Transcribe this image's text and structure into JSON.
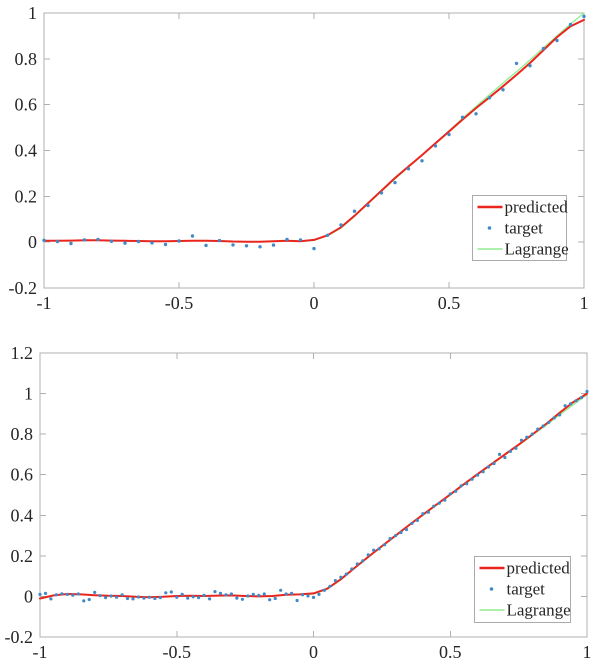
{
  "figure": {
    "background": "#ffffff",
    "axis_color": "#b0b0b0",
    "tick_label_color": "#262626",
    "legend_border_color": "#ababab",
    "legend_background": "#ffffff",
    "series_colors": {
      "predicted": "#e8261d",
      "target": "#4189c7",
      "lagrange": "#90ee90"
    }
  },
  "chart_data": [
    {
      "id": "top",
      "type": "line",
      "title": "",
      "xlabel": "",
      "ylabel": "",
      "xlim": [
        -1,
        1
      ],
      "ylim": [
        -0.2,
        1
      ],
      "grid": false,
      "box": true,
      "xticks": [
        -1,
        -0.5,
        0,
        0.5,
        1
      ],
      "xtick_labels": [
        "-1",
        "-0.5",
        "0",
        "0.5",
        "1"
      ],
      "yticks": [
        -0.2,
        0,
        0.2,
        0.4,
        0.6,
        0.8,
        1
      ],
      "ytick_labels": [
        "-0.2",
        "0",
        "0.2",
        "0.4",
        "0.6",
        "0.8",
        "1"
      ],
      "legend": {
        "position": "bottom-right",
        "entries": [
          {
            "label": "predicted",
            "type": "line",
            "color": "#e8261d",
            "width": 2.4
          },
          {
            "label": "target",
            "type": "dot",
            "color": "#4189c7"
          },
          {
            "label": "Lagrange",
            "type": "line",
            "color": "#90ee90",
            "width": 1.4
          }
        ]
      },
      "series": [
        {
          "name": "Lagrange",
          "kind": "line",
          "color": "#90ee90",
          "width": 1.3,
          "x": [
            -1,
            -0.95,
            -0.9,
            -0.85,
            -0.8,
            -0.75,
            -0.7,
            -0.65,
            -0.6,
            -0.55,
            -0.5,
            -0.45,
            -0.4,
            -0.35,
            -0.3,
            -0.25,
            -0.2,
            -0.15,
            -0.1,
            -0.05,
            0,
            0.05,
            0.1,
            0.15,
            0.2,
            0.25,
            0.3,
            0.35,
            0.4,
            0.45,
            0.5,
            0.55,
            0.6,
            0.65,
            0.7,
            0.75,
            0.8,
            0.85,
            0.9,
            0.95,
            1
          ],
          "y": [
            0.006,
            0.006,
            0.007,
            0.008,
            0.008,
            0.007,
            0.006,
            0.005,
            0.004,
            0.004,
            0.005,
            0.006,
            0.006,
            0.005,
            0.003,
            0.002,
            0.002,
            0.004,
            0.006,
            0.004,
            0.008,
            0.028,
            0.062,
            0.112,
            0.168,
            0.222,
            0.276,
            0.328,
            0.38,
            0.433,
            0.486,
            0.54,
            0.592,
            0.643,
            0.694,
            0.744,
            0.795,
            0.848,
            0.9,
            0.952,
            1.0
          ]
        },
        {
          "name": "predicted",
          "kind": "line",
          "color": "#e8261d",
          "width": 2,
          "x": [
            -1,
            -0.95,
            -0.9,
            -0.85,
            -0.8,
            -0.75,
            -0.7,
            -0.65,
            -0.6,
            -0.55,
            -0.5,
            -0.45,
            -0.4,
            -0.35,
            -0.3,
            -0.25,
            -0.2,
            -0.15,
            -0.1,
            -0.05,
            0,
            0.05,
            0.1,
            0.15,
            0.2,
            0.25,
            0.3,
            0.35,
            0.4,
            0.45,
            0.5,
            0.55,
            0.6,
            0.65,
            0.7,
            0.75,
            0.8,
            0.85,
            0.9,
            0.95,
            1
          ],
          "y": [
            0.006,
            0.006,
            0.007,
            0.008,
            0.008,
            0.007,
            0.006,
            0.005,
            0.004,
            0.004,
            0.005,
            0.006,
            0.006,
            0.005,
            0.003,
            0.002,
            0.002,
            0.004,
            0.006,
            0.004,
            0.01,
            0.03,
            0.065,
            0.115,
            0.17,
            0.225,
            0.28,
            0.33,
            0.38,
            0.432,
            0.483,
            0.535,
            0.585,
            0.632,
            0.68,
            0.73,
            0.782,
            0.838,
            0.895,
            0.942,
            0.97
          ]
        },
        {
          "name": "target",
          "kind": "scatter",
          "color": "#4189c7",
          "r": 1.7,
          "x": [
            -1,
            -0.95,
            -0.9,
            -0.85,
            -0.8,
            -0.75,
            -0.7,
            -0.65,
            -0.6,
            -0.55,
            -0.5,
            -0.45,
            -0.4,
            -0.35,
            -0.3,
            -0.25,
            -0.2,
            -0.15,
            -0.1,
            -0.05,
            0,
            0.05,
            0.1,
            0.15,
            0.2,
            0.25,
            0.3,
            0.35,
            0.4,
            0.45,
            0.5,
            0.55,
            0.6,
            0.65,
            0.7,
            0.75,
            0.8,
            0.85,
            0.9,
            0.95,
            1
          ],
          "y": [
            0.008,
            0.003,
            -0.006,
            0.01,
            0.012,
            0.004,
            -0.004,
            0.003,
            -0.003,
            -0.01,
            0.005,
            0.027,
            -0.014,
            0.007,
            -0.012,
            -0.016,
            -0.02,
            -0.013,
            0.012,
            0.01,
            -0.028,
            0.03,
            0.075,
            0.135,
            0.16,
            0.215,
            0.26,
            0.32,
            0.355,
            0.42,
            0.47,
            0.545,
            0.56,
            0.63,
            0.665,
            0.78,
            0.77,
            0.845,
            0.88,
            0.95,
            0.985
          ]
        }
      ]
    },
    {
      "id": "bottom",
      "type": "line",
      "title": "",
      "xlabel": "",
      "ylabel": "",
      "xlim": [
        -1,
        1
      ],
      "ylim": [
        -0.2,
        1.2
      ],
      "grid": false,
      "box": true,
      "xticks": [
        -1,
        -0.5,
        0,
        0.5,
        1
      ],
      "xtick_labels": [
        "-1",
        "-0.5",
        "0",
        "0.5",
        "1"
      ],
      "yticks": [
        -0.2,
        0,
        0.2,
        0.4,
        0.6,
        0.8,
        1,
        1.2
      ],
      "ytick_labels": [
        "-0.2",
        "0",
        "0.2",
        "0.4",
        "0.6",
        "0.8",
        "1",
        "1.2"
      ],
      "legend": {
        "position": "bottom-right",
        "entries": [
          {
            "label": "predicted",
            "type": "line",
            "color": "#e8261d",
            "width": 2.4
          },
          {
            "label": "target",
            "type": "dot",
            "color": "#4189c7"
          },
          {
            "label": "Lagrange",
            "type": "line",
            "color": "#90ee90",
            "width": 1.4
          }
        ]
      },
      "series": [
        {
          "name": "Lagrange",
          "kind": "line",
          "color": "#90ee90",
          "width": 1.3,
          "x": [
            -1,
            -0.95,
            -0.9,
            -0.85,
            -0.8,
            -0.75,
            -0.7,
            -0.65,
            -0.6,
            -0.55,
            -0.5,
            -0.45,
            -0.4,
            -0.35,
            -0.3,
            -0.25,
            -0.2,
            -0.15,
            -0.1,
            -0.05,
            0,
            0.05,
            0.1,
            0.15,
            0.2,
            0.25,
            0.3,
            0.35,
            0.4,
            0.45,
            0.5,
            0.55,
            0.6,
            0.65,
            0.7,
            0.75,
            0.8,
            0.85,
            0.9,
            0.95,
            1
          ],
          "y": [
            -0.01,
            0.005,
            0.012,
            0.01,
            0.006,
            0.003,
            0.002,
            -0.002,
            -0.004,
            -0.002,
            0.002,
            0.003,
            0.002,
            0.004,
            0.005,
            0.002,
            0,
            0.002,
            0.008,
            0.01,
            0.012,
            0.035,
            0.082,
            0.138,
            0.192,
            0.245,
            0.298,
            0.35,
            0.4,
            0.45,
            0.5,
            0.55,
            0.6,
            0.649,
            0.697,
            0.745,
            0.795,
            0.843,
            0.895,
            0.945,
            0.995
          ]
        },
        {
          "name": "predicted",
          "kind": "line",
          "color": "#e8261d",
          "width": 2,
          "x": [
            -1,
            -0.95,
            -0.9,
            -0.85,
            -0.8,
            -0.75,
            -0.7,
            -0.65,
            -0.6,
            -0.55,
            -0.5,
            -0.45,
            -0.4,
            -0.35,
            -0.3,
            -0.25,
            -0.2,
            -0.15,
            -0.1,
            -0.05,
            0,
            0.05,
            0.1,
            0.15,
            0.2,
            0.25,
            0.3,
            0.35,
            0.4,
            0.45,
            0.5,
            0.55,
            0.6,
            0.65,
            0.7,
            0.75,
            0.8,
            0.85,
            0.9,
            0.95,
            1
          ],
          "y": [
            -0.01,
            0.005,
            0.012,
            0.01,
            0.006,
            0.003,
            0.002,
            -0.002,
            -0.004,
            -0.002,
            0.002,
            0.003,
            0.002,
            0.004,
            0.005,
            0.002,
            0,
            0.002,
            0.008,
            0.01,
            0.015,
            0.038,
            0.085,
            0.14,
            0.195,
            0.248,
            0.3,
            0.352,
            0.403,
            0.453,
            0.503,
            0.553,
            0.603,
            0.652,
            0.7,
            0.748,
            0.798,
            0.85,
            0.905,
            0.958,
            1.0
          ]
        },
        {
          "name": "target",
          "kind": "scatter",
          "color": "#4189c7",
          "r": 1.6,
          "x": [
            -1,
            -0.98,
            -0.96,
            -0.94,
            -0.92,
            -0.9,
            -0.88,
            -0.86,
            -0.84,
            -0.82,
            -0.8,
            -0.78,
            -0.76,
            -0.74,
            -0.72,
            -0.7,
            -0.68,
            -0.66,
            -0.64,
            -0.62,
            -0.6,
            -0.58,
            -0.56,
            -0.54,
            -0.52,
            -0.5,
            -0.48,
            -0.46,
            -0.44,
            -0.42,
            -0.4,
            -0.38,
            -0.36,
            -0.34,
            -0.32,
            -0.3,
            -0.28,
            -0.26,
            -0.24,
            -0.22,
            -0.2,
            -0.18,
            -0.16,
            -0.14,
            -0.12,
            -0.1,
            -0.08,
            -0.06,
            -0.04,
            -0.02,
            0,
            0.02,
            0.04,
            0.06,
            0.08,
            0.1,
            0.12,
            0.14,
            0.16,
            0.18,
            0.2,
            0.22,
            0.24,
            0.26,
            0.28,
            0.3,
            0.32,
            0.34,
            0.36,
            0.38,
            0.4,
            0.42,
            0.44,
            0.46,
            0.48,
            0.5,
            0.52,
            0.54,
            0.56,
            0.58,
            0.6,
            0.62,
            0.64,
            0.66,
            0.68,
            0.7,
            0.72,
            0.74,
            0.76,
            0.78,
            0.8,
            0.82,
            0.84,
            0.86,
            0.88,
            0.9,
            0.92,
            0.94,
            0.96,
            0.98,
            1
          ],
          "y": [
            0.01,
            0.015,
            -0.012,
            0.008,
            0.013,
            0.01,
            0.006,
            0.012,
            -0.022,
            -0.015,
            0.02,
            0.004,
            -0.006,
            0.002,
            -0.004,
            0.008,
            -0.01,
            -0.012,
            -0.003,
            -0.008,
            -0.004,
            -0.01,
            -0.006,
            0.018,
            0.022,
            -0.004,
            0.01,
            -0.008,
            -0.002,
            -0.006,
            0.005,
            -0.012,
            0.024,
            0.015,
            0.008,
            0.012,
            -0.008,
            -0.014,
            0.002,
            0.01,
            0.005,
            0.012,
            -0.016,
            -0.01,
            0.03,
            0.012,
            0.015,
            -0.02,
            0.008,
            0.002,
            -0.005,
            0.01,
            0.03,
            0.05,
            0.078,
            0.095,
            0.11,
            0.135,
            0.16,
            0.175,
            0.205,
            0.228,
            0.235,
            0.255,
            0.285,
            0.3,
            0.315,
            0.33,
            0.36,
            0.375,
            0.408,
            0.415,
            0.445,
            0.46,
            0.475,
            0.505,
            0.518,
            0.545,
            0.555,
            0.578,
            0.598,
            0.615,
            0.638,
            0.655,
            0.7,
            0.685,
            0.715,
            0.73,
            0.77,
            0.785,
            0.8,
            0.825,
            0.84,
            0.858,
            0.88,
            0.895,
            0.94,
            0.95,
            0.965,
            0.98,
            1.01
          ]
        }
      ]
    }
  ]
}
